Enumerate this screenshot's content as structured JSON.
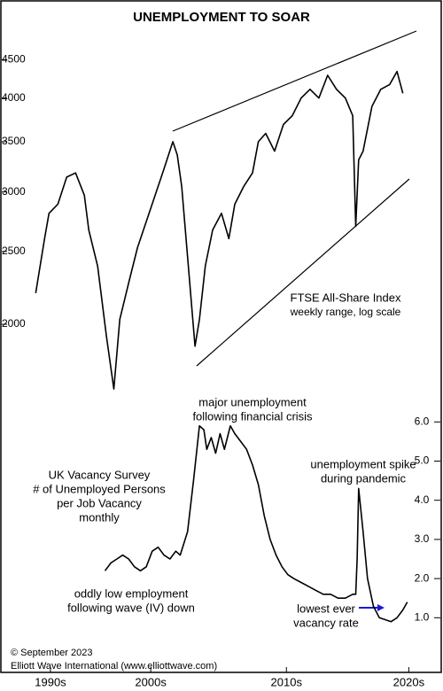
{
  "chart_data": [
    {
      "type": "line",
      "title": "UNEMPLOYMENT TO SOAR",
      "log_scale": true,
      "color": "#000000",
      "annotations": [
        {
          "lines": [
            "FTSE All-Share Index",
            "weekly range, log scale"
          ],
          "color": "#000000"
        }
      ],
      "x": [
        1997.5,
        1998.1,
        1998.4,
        1999.0,
        1999.6,
        2000.2,
        2000.8,
        2001.1,
        2001.7,
        2002.3,
        2002.8,
        2003.2,
        2003.8,
        2004.4,
        2005.0,
        2005.6,
        2006.2,
        2006.8,
        2007.1,
        2007.4,
        2007.8,
        2008.3,
        2008.6,
        2009.0,
        2009.5,
        2010.1,
        2010.6,
        2011.0,
        2011.6,
        2012.2,
        2012.6,
        2013.1,
        2013.7,
        2014.3,
        2014.9,
        2015.5,
        2016.1,
        2016.7,
        2017.3,
        2017.9,
        2018.5,
        2019.0,
        2019.2,
        2019.4,
        2019.7,
        2020.3,
        2020.9,
        2021.5,
        2022.0,
        2022.4
      ],
      "values": [
        2200,
        2600,
        2810,
        2890,
        3140,
        3180,
        2970,
        2670,
        2390,
        1925,
        1640,
        2030,
        2270,
        2530,
        2740,
        2970,
        3220,
        3500,
        3360,
        3050,
        2460,
        1870,
        2030,
        2390,
        2670,
        2810,
        2600,
        2890,
        3050,
        3180,
        3500,
        3590,
        3400,
        3690,
        3790,
        4000,
        4110,
        4000,
        4290,
        4110,
        4000,
        3790,
        2700,
        3310,
        3400,
        3900,
        4110,
        4170,
        4340,
        4060
      ],
      "xlim": [
        1997,
        2025
      ],
      "ylim": [
        1500,
        4900
      ],
      "yticks": [
        2000,
        2500,
        3000,
        3500,
        4000,
        4500
      ]
    },
    {
      "type": "line",
      "color": "#000000",
      "annotations": [
        {
          "lines": [
            "major unemployment",
            "following financial crisis"
          ],
          "color": "#1a1ad6"
        },
        {
          "lines": [
            "UK Vacancy Survey",
            "# of Unemployed Persons",
            "per Job Vacancy",
            "monthly"
          ],
          "color": "#000000"
        },
        {
          "lines": [
            "unemployment spike",
            "during pandemic"
          ],
          "color": "#1a1ad6"
        },
        {
          "lines": [
            "oddly low employment",
            "following wave (IV) down"
          ],
          "color": "#1a1ad6"
        },
        {
          "lines": [
            "lowest ever",
            "vacancy rate"
          ],
          "color": "#1a1ad6"
        }
      ],
      "x": [
        2002.2,
        2002.6,
        2003.0,
        2003.4,
        2003.8,
        2004.2,
        2004.6,
        2005.0,
        2005.4,
        2005.8,
        2006.2,
        2006.6,
        2007.0,
        2007.3,
        2007.8,
        2008.2,
        2008.6,
        2008.9,
        2009.1,
        2009.4,
        2009.7,
        2010.0,
        2010.3,
        2010.7,
        2011.0,
        2011.4,
        2011.8,
        2012.2,
        2012.6,
        2013.0,
        2013.4,
        2013.8,
        2014.2,
        2014.6,
        2015.0,
        2015.5,
        2016.0,
        2016.5,
        2017.0,
        2017.5,
        2018.0,
        2018.5,
        2019.0,
        2019.2,
        2019.3,
        2019.4,
        2019.7,
        2020.0,
        2020.4,
        2020.8,
        2021.2,
        2021.6,
        2022.0,
        2022.4,
        2022.7
      ],
      "values": [
        2.2,
        2.4,
        2.5,
        2.6,
        2.5,
        2.3,
        2.2,
        2.3,
        2.7,
        2.8,
        2.6,
        2.5,
        2.7,
        2.6,
        3.2,
        4.5,
        5.9,
        5.8,
        5.3,
        5.6,
        5.2,
        5.7,
        5.3,
        5.9,
        5.7,
        5.5,
        5.3,
        4.9,
        4.4,
        3.6,
        3.0,
        2.6,
        2.3,
        2.1,
        2.0,
        1.9,
        1.8,
        1.7,
        1.6,
        1.6,
        1.5,
        1.5,
        1.6,
        1.6,
        2.5,
        4.3,
        3.2,
        2.0,
        1.3,
        1.0,
        0.95,
        0.9,
        1.0,
        1.2,
        1.4
      ],
      "xlim": [
        1997,
        2025
      ],
      "ylim": [
        0.6,
        6.3
      ],
      "yticks": [
        {
          "value": 1,
          "label": "1.0"
        },
        {
          "value": 2,
          "label": "2.0"
        },
        {
          "value": 3,
          "label": "3.0"
        },
        {
          "value": 4,
          "label": "4.0"
        },
        {
          "value": 5,
          "label": "5.0"
        },
        {
          "value": 6,
          "label": "6.0"
        }
      ],
      "xticks": [
        {
          "value": 1998.5,
          "label": "1990s"
        },
        {
          "value": 2005.3,
          "label": "2000s"
        },
        {
          "value": 2014.5,
          "label": "2010s"
        },
        {
          "value": 2022.8,
          "label": "2020s"
        }
      ]
    }
  ],
  "credits": [
    "© September 2023",
    "Elliott Wave International (www.elliottwave.com)"
  ]
}
